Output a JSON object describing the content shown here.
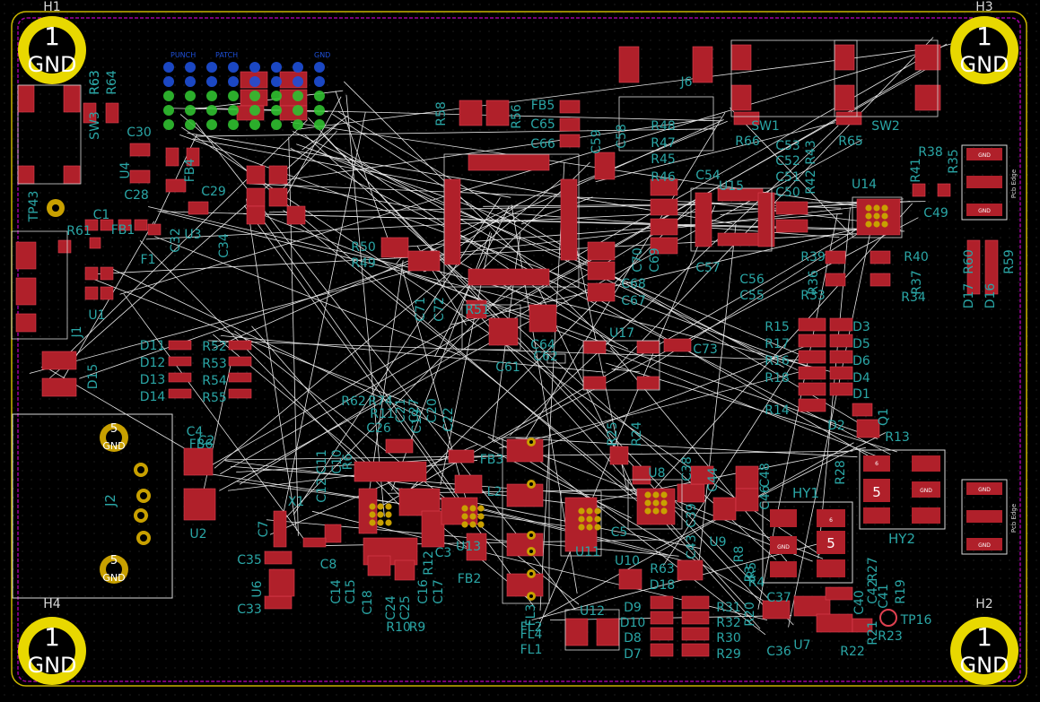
{
  "colors": {
    "background": "#000000",
    "grid_dot": "#3a3a3a",
    "board_edge": "#c8b400",
    "courtyard": "#a000a0",
    "pad": "#b0202a",
    "pad_outline": "#e04050",
    "ratsnest": "#ffffff",
    "silk": "#d8d8d8",
    "fab_text": "#2aa6a6",
    "mount_hole": "#e8d800",
    "through_pad": "#c8a000",
    "bottom_pad": "#1e4fd8",
    "via_green": "#30c030"
  },
  "mounting_holes": [
    {
      "ref": "H1",
      "pad_number": "1",
      "net": "GND"
    },
    {
      "ref": "H3",
      "pad_number": "1",
      "net": "GND"
    },
    {
      "ref": "H4",
      "pad_number": "1",
      "net": "GND"
    },
    {
      "ref": "H2",
      "pad_number": "1",
      "net": "GND"
    }
  ],
  "j2": {
    "ref": "J2",
    "shield_pad": "5",
    "net": "GND"
  },
  "hybrids": [
    {
      "ref": "HY1",
      "center_pad": "5",
      "pad_labels": [
        "GND",
        "6"
      ]
    },
    {
      "ref": "HY2",
      "center_pad": "5",
      "pad_labels": [
        "GND",
        "6"
      ]
    }
  ],
  "edge_connectors": [
    {
      "label": "Pcb Edge"
    },
    {
      "label": "Pcb Edge"
    }
  ],
  "connector_pad_label": "GND",
  "labels": [
    "J6",
    "SW1",
    "SW2",
    "R66",
    "R65",
    "SW3",
    "R63",
    "R64",
    "C30",
    "U4",
    "C28",
    "FB4",
    "C29",
    "C32",
    "C34",
    "U3",
    "TP43",
    "C1",
    "R61",
    "FB1",
    "F1",
    "U1",
    "J1",
    "D15",
    "D11",
    "D12",
    "D13",
    "D14",
    "R52",
    "R53",
    "R54",
    "R55",
    "FB5",
    "C65",
    "C66",
    "R58",
    "R56",
    "C59",
    "C58",
    "U14",
    "U15",
    "C54",
    "C57",
    "R48",
    "R47",
    "R46",
    "R45",
    "C53",
    "C52",
    "C51",
    "C50",
    "R43",
    "R42",
    "R41",
    "R38",
    "R35",
    "C49",
    "R39",
    "R36",
    "R33",
    "R40",
    "R37",
    "R34",
    "D17",
    "D16",
    "R60",
    "R59",
    "C56",
    "C55",
    "R50",
    "R49",
    "C71",
    "C72",
    "R51",
    "C61",
    "C64",
    "C62",
    "U17",
    "C73",
    "C70",
    "C68",
    "C69",
    "C67",
    "R15",
    "R17",
    "R16",
    "R18",
    "R14",
    "D3",
    "D5",
    "D6",
    "D4",
    "D1",
    "D2",
    "Q1",
    "R13",
    "R62",
    "R74",
    "R11",
    "C26",
    "C11",
    "C10",
    "C12",
    "R6",
    "C7",
    "X1",
    "C8",
    "C35",
    "U6",
    "C33",
    "C14",
    "C15",
    "C18",
    "C24",
    "C25",
    "C16",
    "C17",
    "R12",
    "R10",
    "R9",
    "C3",
    "U13",
    "FB3",
    "FB2",
    "L2",
    "FL3",
    "FL4",
    "FL2",
    "FL1",
    "U11",
    "C5",
    "U12",
    "U10",
    "R25",
    "R24",
    "U8",
    "C38",
    "C44",
    "C48",
    "C46",
    "C39",
    "C43",
    "U9",
    "R8",
    "R4",
    "R5",
    "R63",
    "D18",
    "D9",
    "D10",
    "D8",
    "D7",
    "R31",
    "R32",
    "R30",
    "R29",
    "R20",
    "R3",
    "C37",
    "C36",
    "U7",
    "C40",
    "C42",
    "C41",
    "R27",
    "R19",
    "R21",
    "R22",
    "R23",
    "TP16",
    "R28",
    "C2",
    "C4",
    "FB6",
    "U2",
    "C27",
    "C21",
    "C19",
    "C20",
    "C22"
  ],
  "bottom_layer_labels": [
    "GND",
    "PUNCH",
    "PATCH"
  ]
}
